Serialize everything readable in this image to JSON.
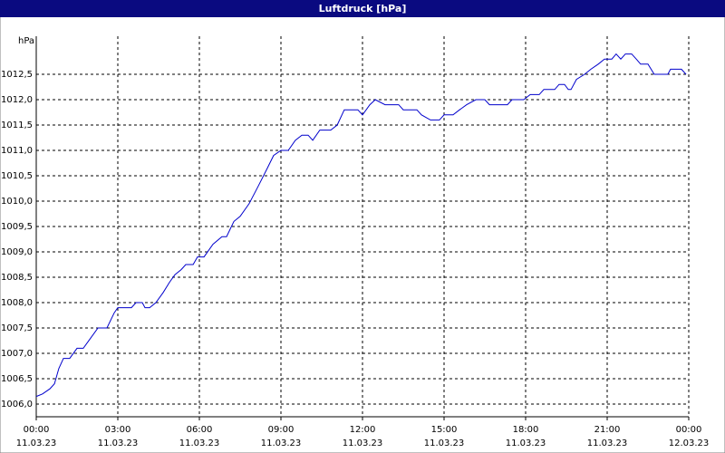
{
  "chart_data": {
    "type": "line",
    "title": "Luftdruck [hPa]",
    "y_unit": "hPa",
    "xlim": [
      0,
      24
    ],
    "xticks": [
      {
        "value": 0,
        "label": "00:00",
        "date": "11.03.23"
      },
      {
        "value": 3,
        "label": "03:00",
        "date": "11.03.23"
      },
      {
        "value": 6,
        "label": "06:00",
        "date": "11.03.23"
      },
      {
        "value": 9,
        "label": "09:00",
        "date": "11.03.23"
      },
      {
        "value": 12,
        "label": "12:00",
        "date": "11.03.23"
      },
      {
        "value": 15,
        "label": "15:00",
        "date": "11.03.23"
      },
      {
        "value": 18,
        "label": "18:00",
        "date": "11.03.23"
      },
      {
        "value": 21,
        "label": "21:00",
        "date": "11.03.23"
      },
      {
        "value": 24,
        "label": "00:00",
        "date": "12.03.23"
      }
    ],
    "ylim": [
      1005.75,
      1013.25
    ],
    "yticks": [
      {
        "value": 1006,
        "label": "1006,0"
      },
      {
        "value": 1006.5,
        "label": "1006,5"
      },
      {
        "value": 1007,
        "label": "1007,0"
      },
      {
        "value": 1007.5,
        "label": "1007,5"
      },
      {
        "value": 1008,
        "label": "1008,0"
      },
      {
        "value": 1008.5,
        "label": "1008,5"
      },
      {
        "value": 1009,
        "label": "1009,0"
      },
      {
        "value": 1009.5,
        "label": "1009,5"
      },
      {
        "value": 1010,
        "label": "1010,0"
      },
      {
        "value": 1010.5,
        "label": "1010,5"
      },
      {
        "value": 1011,
        "label": "1011,0"
      },
      {
        "value": 1011.5,
        "label": "1011,5"
      },
      {
        "value": 1012,
        "label": "1012,0"
      },
      {
        "value": 1012.5,
        "label": "1012,5"
      }
    ],
    "grid": true,
    "series": [
      {
        "color": "#0000cc",
        "x": [
          0,
          0.23,
          0.5,
          0.67,
          0.83,
          1,
          1.23,
          1.5,
          1.73,
          2,
          2.27,
          2.6,
          2.87,
          3,
          3.5,
          3.67,
          3.9,
          4,
          4.17,
          4.4,
          4.67,
          4.9,
          5.1,
          5.33,
          5.5,
          5.77,
          5.93,
          6.17,
          6.5,
          6.83,
          7,
          7.27,
          7.5,
          7.83,
          8.17,
          8.5,
          8.73,
          9,
          9.27,
          9.53,
          9.77,
          10,
          10.17,
          10.43,
          10.83,
          11.07,
          11.33,
          11.83,
          12,
          12.27,
          12.47,
          12.83,
          13.33,
          13.5,
          14,
          14.17,
          14.5,
          14.83,
          15,
          15.33,
          15.57,
          15.83,
          16.17,
          16.5,
          16.67,
          17.33,
          17.5,
          17.93,
          18.17,
          18.5,
          18.67,
          19.07,
          19.23,
          19.43,
          19.57,
          19.67,
          19.87,
          20.17,
          20.4,
          20.67,
          20.9,
          21.17,
          21.33,
          21.5,
          21.67,
          21.9,
          22.07,
          22.23,
          22.5,
          22.73,
          23.23,
          23.33,
          23.73,
          23.9
        ],
        "values": [
          1006.15,
          1006.2,
          1006.3,
          1006.4,
          1006.7,
          1006.9,
          1006.9,
          1007.1,
          1007.1,
          1007.3,
          1007.5,
          1007.5,
          1007.8,
          1007.9,
          1007.9,
          1008.0,
          1008.0,
          1007.9,
          1007.9,
          1008.0,
          1008.2,
          1008.4,
          1008.55,
          1008.65,
          1008.75,
          1008.75,
          1008.9,
          1008.9,
          1009.15,
          1009.3,
          1009.3,
          1009.6,
          1009.7,
          1009.95,
          1010.3,
          1010.65,
          1010.9,
          1011.0,
          1011.0,
          1011.2,
          1011.3,
          1011.3,
          1011.2,
          1011.4,
          1011.4,
          1011.5,
          1011.8,
          1011.8,
          1011.7,
          1011.9,
          1012.0,
          1011.9,
          1011.9,
          1011.8,
          1011.8,
          1011.7,
          1011.6,
          1011.6,
          1011.7,
          1011.7,
          1011.8,
          1011.9,
          1012.0,
          1012.0,
          1011.9,
          1011.9,
          1012.0,
          1012.0,
          1012.1,
          1012.1,
          1012.2,
          1012.2,
          1012.3,
          1012.3,
          1012.2,
          1012.2,
          1012.4,
          1012.5,
          1012.6,
          1012.7,
          1012.8,
          1012.8,
          1012.9,
          1012.8,
          1012.9,
          1012.9,
          1012.8,
          1012.7,
          1012.7,
          1012.5,
          1012.5,
          1012.6,
          1012.6,
          1012.5
        ]
      }
    ]
  }
}
